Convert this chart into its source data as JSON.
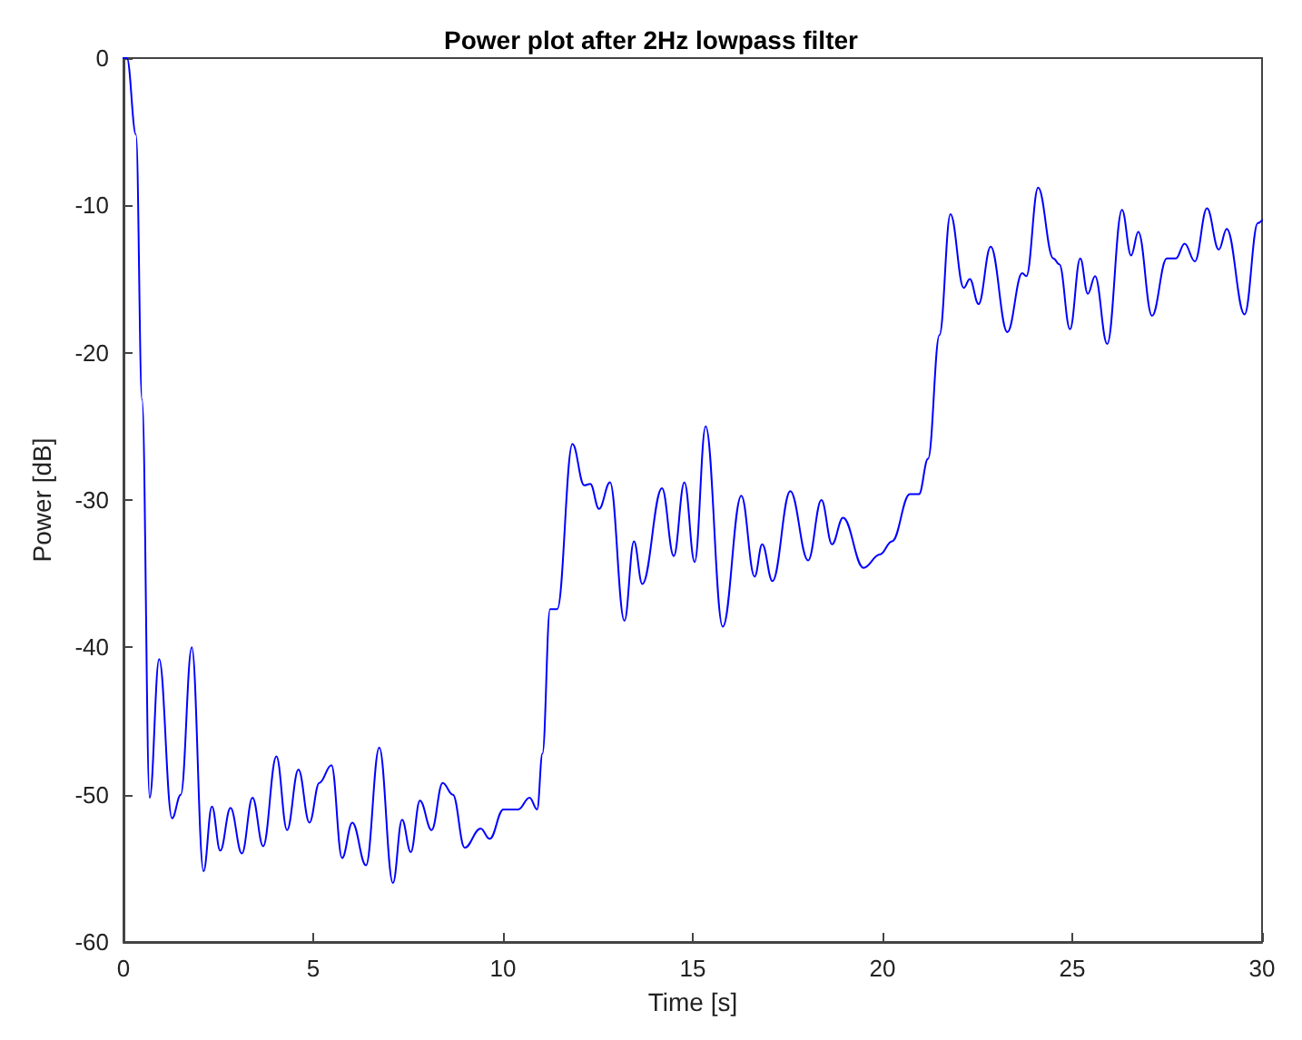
{
  "chart_data": {
    "type": "line",
    "title": "Power plot after 2Hz lowpass filter",
    "xlabel": "Time [s]",
    "ylabel": "Power [dB]",
    "x": [
      0,
      0.09,
      0.33,
      0.49,
      0.69,
      0.94,
      1.28,
      1.51,
      1.8,
      2.11,
      2.33,
      2.55,
      2.82,
      3.12,
      3.4,
      3.68,
      4.03,
      4.31,
      4.61,
      4.9,
      5.16,
      5.48,
      5.76,
      6.03,
      6.39,
      6.74,
      7.1,
      7.34,
      7.57,
      7.81,
      8.12,
      8.41,
      8.68,
      8.99,
      9.41,
      9.65,
      10.01,
      10.4,
      10.7,
      10.9,
      11.04,
      11.24,
      11.43,
      11.83,
      12.14,
      12.3,
      12.53,
      12.82,
      13.2,
      13.45,
      13.67,
      14.19,
      14.5,
      14.78,
      15.05,
      15.34,
      15.79,
      16.28,
      16.63,
      16.83,
      17.1,
      17.57,
      18.04,
      18.39,
      18.67,
      18.96,
      19.5,
      19.93,
      20.25,
      20.72,
      20.96,
      21.2,
      21.5,
      21.79,
      22.14,
      22.3,
      22.53,
      22.85,
      23.29,
      23.68,
      23.79,
      24.1,
      24.5,
      24.66,
      24.94,
      25.21,
      25.41,
      25.6,
      25.92,
      26.31,
      26.55,
      26.74,
      27.1,
      27.49,
      27.73,
      27.96,
      28.23,
      28.55,
      28.86,
      29.07,
      29.54,
      29.89,
      30
    ],
    "series": [
      {
        "color": "#0000ff",
        "values": [
          0,
          0,
          -5.2,
          -23.2,
          -50.2,
          -40.8,
          -51.6,
          -50,
          -40,
          -55.2,
          -50.8,
          -53.8,
          -50.9,
          -54,
          -50.2,
          -53.5,
          -47.4,
          -52.4,
          -48.3,
          -51.9,
          -49.2,
          -48,
          -54.3,
          -51.9,
          -54.8,
          -46.8,
          -56,
          -51.7,
          -53.9,
          -50.4,
          -52.4,
          -49.2,
          -50,
          -53.6,
          -52.3,
          -53,
          -51,
          -51,
          -50.2,
          -51,
          -47.2,
          -37.4,
          -37.4,
          -26.2,
          -29,
          -28.9,
          -30.6,
          -28.8,
          -38.2,
          -32.8,
          -35.7,
          -29.2,
          -33.8,
          -28.8,
          -34.2,
          -25,
          -38.6,
          -29.7,
          -35.2,
          -33,
          -35.5,
          -29.4,
          -34.1,
          -30,
          -33,
          -31.2,
          -34.6,
          -33.7,
          -32.8,
          -29.6,
          -29.6,
          -27.2,
          -18.8,
          -10.6,
          -15.6,
          -15,
          -16.7,
          -12.8,
          -18.6,
          -14.6,
          -14.8,
          -8.8,
          -13.6,
          -14,
          -18.4,
          -13.6,
          -16,
          -14.8,
          -19.4,
          -10.3,
          -13.4,
          -11.8,
          -17.5,
          -13.6,
          -13.6,
          -12.6,
          -13.8,
          -10.2,
          -13,
          -11.6,
          -17.4,
          -11.2,
          -11
        ]
      }
    ],
    "xlim": [
      0,
      30
    ],
    "xticks": [
      0,
      5,
      10,
      15,
      20,
      25,
      30
    ],
    "ylim": [
      -60,
      0
    ],
    "yticks": [
      -60,
      -50,
      -40,
      -30,
      -20,
      -10,
      0
    ],
    "grid": false,
    "marker": "none",
    "line_style": "solid"
  }
}
